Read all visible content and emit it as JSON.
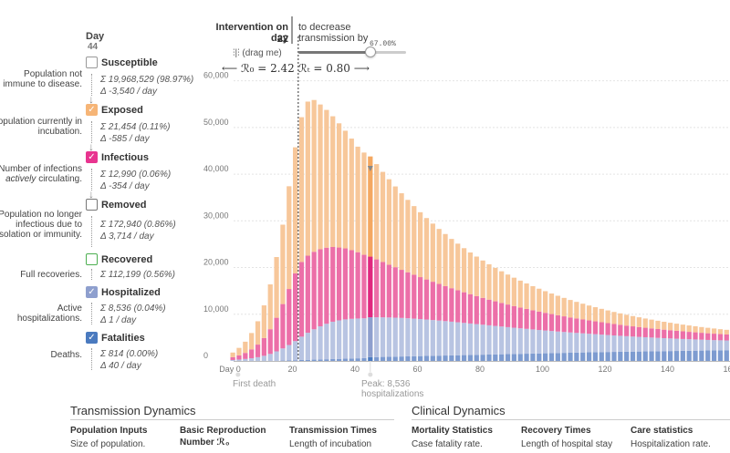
{
  "legend": {
    "day_label": "Day",
    "day_value": "44",
    "categories": [
      {
        "name": "Susceptible",
        "checked": false,
        "color": "#999999",
        "desc_html": "Population not immune to disease.",
        "sum": "19,968,529 (98.97%)",
        "delta": "-3,540 / day"
      },
      {
        "name": "Exposed",
        "checked": true,
        "color": "#f6b577",
        "desc_html": "Population currently in incubation.",
        "sum": "21,454 (0.11%)",
        "delta": "-585 / day"
      },
      {
        "name": "Infectious",
        "checked": true,
        "color": "#e8348f",
        "desc_pre": "Number of infections ",
        "desc_em": "actively",
        "desc_post": " circulating.",
        "sum": "12,990 (0.06%)",
        "delta": "-354 / day"
      },
      {
        "name": "Removed",
        "checked": false,
        "color": "#777777",
        "desc_html": "Population no longer infectious due to isolation or immunity.",
        "sum": "172,940 (0.86%)",
        "delta": "3,714 / day"
      },
      {
        "name": "Recovered",
        "checked": false,
        "color": "#4caf50",
        "desc_html": "Full recoveries.",
        "sum": "112,199 (0.56%)"
      },
      {
        "name": "Hospitalized",
        "checked": true,
        "color": "#8e9fce",
        "desc_html": "Active hospitalizations.",
        "sum": "8,536 (0.04%)",
        "delta": "1 / day"
      },
      {
        "name": "Fatalities",
        "checked": true,
        "color": "#4a7abf",
        "desc_html": "Deaths.",
        "sum": "814 (0.00%)",
        "delta": "40 / day"
      }
    ],
    "sum_symbol": "Σ",
    "delta_symbol": "Δ",
    "check_mark": "✓"
  },
  "intervention": {
    "title": "Intervention on day",
    "day": "22",
    "decrease_text": "to decrease transmission by",
    "drag_label": "(drag me)",
    "drag_icon": "drag-handle-icon",
    "percent_label": "67.00%",
    "percent_value": 0.67,
    "r0_label": "⟵ ℛ₀ = 2.42",
    "rt_label": "ℛₜ = 0.80 ⟶"
  },
  "annotations": {
    "first_death": "First death",
    "peak_line1": "Peak: 8,536",
    "peak_line2": "hospitalizations"
  },
  "colors": {
    "exposed": "#f7c79a",
    "infectious": "#ec6fa8",
    "hospitalized": "#b8c4e2",
    "fatalities": "#7d9bd0",
    "exposed_hl": "#f4a861",
    "infectious_hl": "#e0287f",
    "hospitalized_hl": "#8e9fce",
    "fatalities_hl": "#4a7abf"
  },
  "chart_data": {
    "type": "bar",
    "stacked": true,
    "title": "",
    "xlabel": "Day",
    "ylabel": "",
    "x_ticks": [
      "Day 0",
      "20",
      "40",
      "60",
      "80",
      "100",
      "120",
      "140",
      "160"
    ],
    "x_tick_values": [
      0,
      20,
      40,
      60,
      80,
      100,
      120,
      140,
      160
    ],
    "y_ticks": [
      "0",
      "10,000",
      "20,000",
      "30,000",
      "40,000",
      "50,000",
      "60,000"
    ],
    "y_tick_values": [
      0,
      10000,
      20000,
      30000,
      40000,
      50000,
      60000
    ],
    "xlim": [
      0,
      160
    ],
    "ylim": [
      0,
      65000
    ],
    "intervention_day": 22,
    "selected_day": 44,
    "series": [
      "Fatalities",
      "Hospitalized",
      "Infectious",
      "Exposed"
    ],
    "days": [
      0,
      2,
      4,
      6,
      8,
      10,
      12,
      14,
      16,
      18,
      20,
      22,
      24,
      26,
      28,
      30,
      32,
      34,
      36,
      38,
      40,
      42,
      44,
      46,
      48,
      50,
      52,
      54,
      56,
      58,
      60,
      62,
      64,
      66,
      68,
      70,
      72,
      74,
      76,
      78,
      80,
      82,
      84,
      86,
      88,
      90,
      92,
      94,
      96,
      98,
      100,
      102,
      104,
      106,
      108,
      110,
      112,
      114,
      116,
      118,
      120,
      122,
      124,
      126,
      128,
      130,
      132,
      134,
      136,
      138,
      140,
      142,
      144,
      146,
      148,
      150,
      152,
      154,
      156,
      158,
      160
    ],
    "fatalities": [
      0,
      0,
      0,
      0,
      0,
      0,
      0,
      50,
      80,
      110,
      150,
      200,
      240,
      280,
      320,
      360,
      400,
      440,
      480,
      520,
      560,
      600,
      814,
      830,
      860,
      890,
      920,
      950,
      980,
      1010,
      1040,
      1070,
      1100,
      1130,
      1160,
      1190,
      1220,
      1250,
      1280,
      1310,
      1340,
      1370,
      1400,
      1430,
      1460,
      1490,
      1520,
      1550,
      1580,
      1610,
      1640,
      1670,
      1700,
      1730,
      1760,
      1790,
      1820,
      1850,
      1880,
      1900,
      1920,
      1940,
      1960,
      1980,
      2000,
      2020,
      2040,
      2060,
      2080,
      2100,
      2120,
      2140,
      2160,
      2180,
      2200,
      2220,
      2240,
      2260,
      2280,
      2300,
      2320
    ],
    "hospitalized": [
      200,
      300,
      420,
      580,
      800,
      1100,
      1500,
      2000,
      2600,
      3300,
      4100,
      5000,
      5800,
      6500,
      7100,
      7600,
      8000,
      8250,
      8420,
      8500,
      8530,
      8530,
      8536,
      8520,
      8480,
      8420,
      8350,
      8260,
      8160,
      8050,
      7930,
      7800,
      7660,
      7520,
      7370,
      7220,
      7060,
      6900,
      6740,
      6580,
      6420,
      6260,
      6100,
      5940,
      5780,
      5620,
      5470,
      5320,
      5170,
      5020,
      4880,
      4740,
      4600,
      4470,
      4340,
      4210,
      4090,
      3970,
      3850,
      3740,
      3630,
      3520,
      3420,
      3320,
      3220,
      3130,
      3040,
      2950,
      2860,
      2780,
      2700,
      2620,
      2540,
      2470,
      2400,
      2330,
      2260,
      2200,
      2140,
      2080,
      2020
    ],
    "infectious": [
      600,
      900,
      1300,
      1900,
      2700,
      3800,
      5300,
      7200,
      9500,
      12000,
      14500,
      16000,
      16500,
      16600,
      16500,
      16300,
      16000,
      15600,
      15200,
      14700,
      14200,
      13600,
      12990,
      12400,
      11850,
      11300,
      10800,
      10300,
      9850,
      9400,
      8980,
      8580,
      8200,
      7840,
      7500,
      7170,
      6860,
      6560,
      6280,
      6010,
      5750,
      5500,
      5270,
      5050,
      4840,
      4640,
      4450,
      4270,
      4100,
      3940,
      3780,
      3630,
      3490,
      3350,
      3220,
      3100,
      2980,
      2860,
      2750,
      2650,
      2550,
      2450,
      2360,
      2270,
      2190,
      2110,
      2030,
      1960,
      1890,
      1820,
      1760,
      1700,
      1640,
      1580,
      1530,
      1480,
      1430,
      1380,
      1330,
      1290,
      1250
    ],
    "exposed": [
      1000,
      1600,
      2400,
      3500,
      5000,
      7000,
      9600,
      13000,
      17000,
      22000,
      27000,
      31000,
      33000,
      32500,
      31000,
      29500,
      28000,
      26600,
      25200,
      23900,
      22600,
      21900,
      21454,
      20400,
      19300,
      18300,
      17300,
      16400,
      15500,
      14700,
      13900,
      13150,
      12450,
      11780,
      11150,
      10550,
      9980,
      9440,
      8930,
      8450,
      8000,
      7570,
      7160,
      6780,
      6420,
      6080,
      5760,
      5460,
      5170,
      4900,
      4640,
      4400,
      4170,
      3950,
      3740,
      3550,
      3370,
      3190,
      3030,
      2870,
      2720,
      2580,
      2450,
      2320,
      2200,
      2090,
      1980,
      1880,
      1780,
      1690,
      1600,
      1520,
      1440,
      1370,
      1300,
      1230,
      1170,
      1110,
      1050,
      1000,
      950
    ]
  },
  "bottom": {
    "left_title": "Transmission Dynamics",
    "right_title": "Clinical Dynamics",
    "columns": [
      {
        "head": "Population Inputs",
        "text": "Size of population."
      },
      {
        "head": "Basic Reproduction Number ℛ₀",
        "text": ""
      },
      {
        "head": "Transmission Times",
        "text": "Length of incubation"
      },
      {
        "head": "Mortality Statistics",
        "text": "Case fatality rate."
      },
      {
        "head": "Recovery Times",
        "text": "Length of hospital stay"
      },
      {
        "head": "Care statistics",
        "text": "Hospitalization rate."
      }
    ]
  }
}
